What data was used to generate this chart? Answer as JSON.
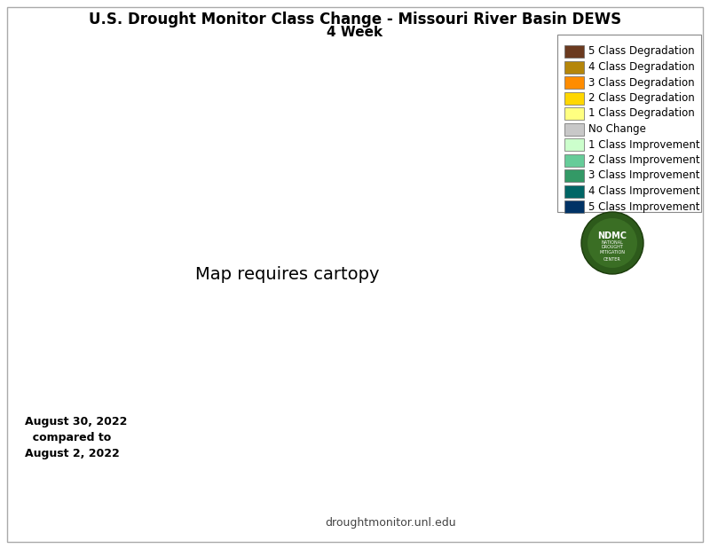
{
  "title_line1": "U.S. Drought Monitor Class Change - Missouri River Basin DEWS",
  "title_line2": "4 Week",
  "date_text": "August 30, 2022\n  compared to\nAugust 2, 2022",
  "website_text": "droughtmonitor.unl.edu",
  "legend_entries": [
    {
      "label": "5 Class Degradation",
      "color": "#6b3a1f"
    },
    {
      "label": "4 Class Degradation",
      "color": "#b5860a"
    },
    {
      "label": "3 Class Degradation",
      "color": "#ff8c00"
    },
    {
      "label": "2 Class Degradation",
      "color": "#ffd700"
    },
    {
      "label": "1 Class Degradation",
      "color": "#ffff80"
    },
    {
      "label": "No Change",
      "color": "#c8c8c8"
    },
    {
      "label": "1 Class Improvement",
      "color": "#ccffcc"
    },
    {
      "label": "2 Class Improvement",
      "color": "#66cc99"
    },
    {
      "label": "3 Class Improvement",
      "color": "#339966"
    },
    {
      "label": "4 Class Improvement",
      "color": "#006666"
    },
    {
      "label": "5 Class Improvement",
      "color": "#003366"
    }
  ],
  "bg": "#ffffff",
  "border_color": "#aaaaaa",
  "state_edge": "#000000",
  "county_edge": "#888888",
  "title_fs": 12,
  "subtitle_fs": 11,
  "legend_fs": 8.5,
  "date_fs": 9,
  "web_fs": 9
}
